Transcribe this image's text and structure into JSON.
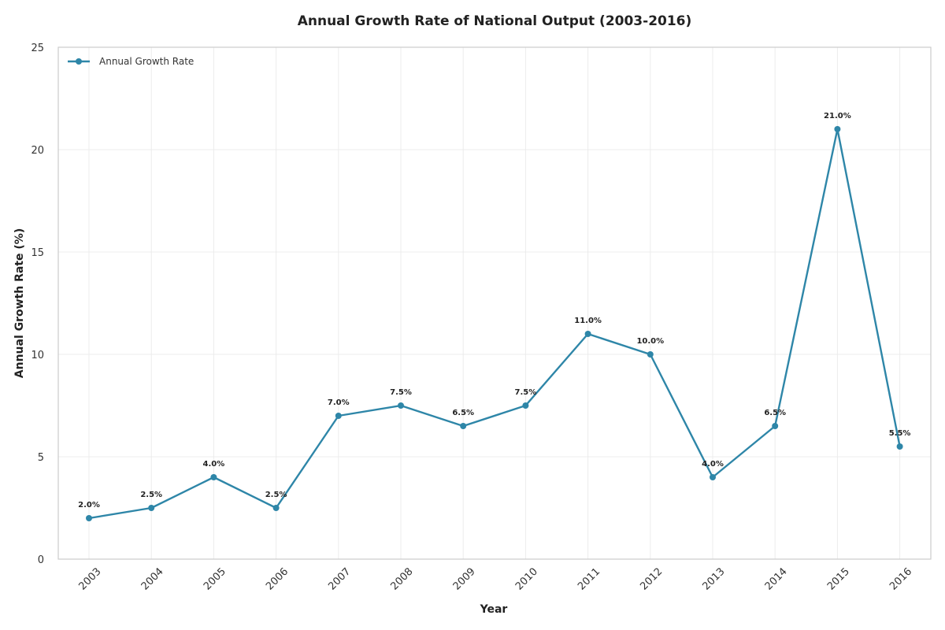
{
  "chart_data": {
    "type": "line",
    "title": "Annual Growth Rate of National Output (2003-2016)",
    "xlabel": "Year",
    "ylabel": "Annual Growth Rate (%)",
    "ylim": [
      0,
      25
    ],
    "yticks": [
      "0",
      "5",
      "10",
      "15",
      "20",
      "25"
    ],
    "categories": [
      "2003",
      "2004",
      "2005",
      "2006",
      "2007",
      "2008",
      "2009",
      "2010",
      "2011",
      "2012",
      "2013",
      "2014",
      "2015",
      "2016"
    ],
    "series": [
      {
        "name": "Annual Growth Rate",
        "values": [
          2.0,
          2.5,
          4.0,
          2.5,
          7.0,
          7.5,
          6.5,
          7.5,
          11.0,
          10.0,
          4.0,
          6.5,
          21.0,
          5.5
        ],
        "labels": [
          "2.0%",
          "2.5%",
          "4.0%",
          "2.5%",
          "7.0%",
          "7.5%",
          "6.5%",
          "7.5%",
          "11.0%",
          "10.0%",
          "4.0%",
          "6.5%",
          "21.0%",
          "5.5%"
        ],
        "color": "#2e86a8"
      }
    ],
    "grid": true,
    "legend_position": "top-left"
  }
}
